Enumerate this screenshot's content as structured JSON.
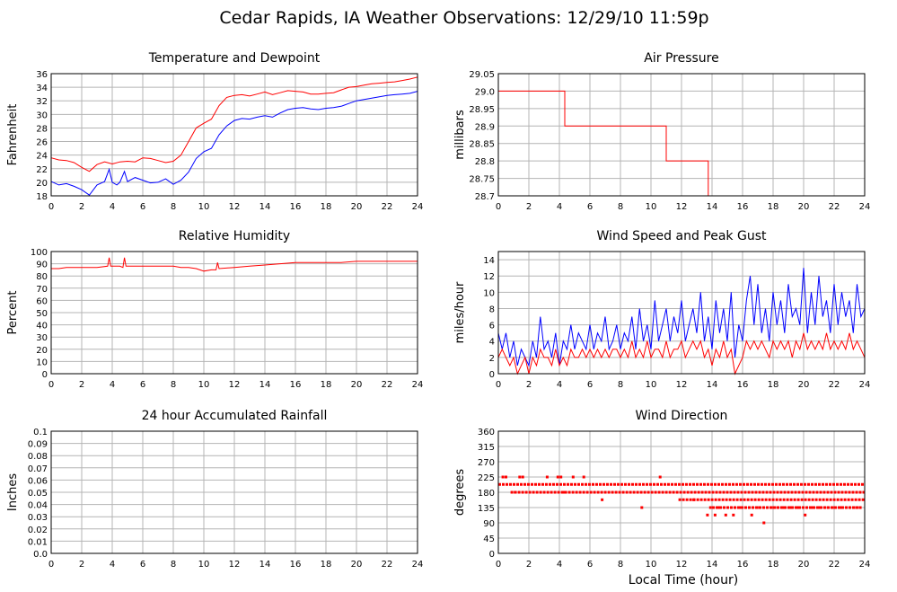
{
  "title": "Cedar Rapids, IA Weather Observations: 12/29/10 11:59p",
  "xlabel_bottom": "Local Time (hour)",
  "colors": {
    "red": "#ff0000",
    "blue": "#0000ff",
    "grid": "#b4b4b4"
  },
  "chart_data": [
    {
      "id": "temp",
      "type": "line",
      "title": "Temperature and Dewpoint",
      "ylabel": "Fahrenheit",
      "xlim": [
        0,
        24
      ],
      "ylim": [
        18,
        36
      ],
      "xticks": [
        0,
        2,
        4,
        6,
        8,
        10,
        12,
        14,
        16,
        18,
        20,
        22,
        24
      ],
      "yticks": [
        18,
        20,
        22,
        24,
        26,
        28,
        30,
        32,
        34,
        36
      ],
      "ytick_labels": [
        "18",
        "20",
        "22",
        "24",
        "26",
        "28",
        "30",
        "32",
        "34",
        "36"
      ],
      "series": [
        {
          "color": "#ff0000",
          "x": [
            0,
            0.5,
            1,
            1.5,
            2,
            2.5,
            3,
            3.5,
            4,
            4.5,
            5,
            5.5,
            6,
            6.5,
            7,
            7.5,
            8,
            8.5,
            9,
            9.5,
            10,
            10.5,
            11,
            11.5,
            12,
            12.5,
            13,
            13.5,
            14,
            14.5,
            15,
            15.5,
            16,
            16.5,
            17,
            17.5,
            18,
            18.5,
            19,
            19.5,
            20,
            20.5,
            21,
            21.5,
            22,
            22.5,
            23,
            23.5,
            24
          ],
          "values": [
            23.6,
            23.3,
            23.2,
            22.9,
            22.2,
            21.6,
            22.6,
            23.0,
            22.7,
            23.0,
            23.1,
            23.0,
            23.6,
            23.5,
            23.2,
            22.9,
            23.1,
            24.0,
            26.0,
            28.0,
            28.7,
            29.3,
            31.3,
            32.5,
            32.8,
            32.9,
            32.7,
            33.0,
            33.3,
            32.9,
            33.2,
            33.5,
            33.4,
            33.3,
            33.0,
            33.0,
            33.1,
            33.2,
            33.6,
            34.0,
            34.1,
            34.3,
            34.5,
            34.6,
            34.7,
            34.8,
            35.0,
            35.2,
            35.5
          ]
        },
        {
          "color": "#0000ff",
          "x": [
            0,
            0.5,
            1,
            1.5,
            2,
            2.5,
            3,
            3.5,
            3.8,
            4,
            4.3,
            4.5,
            4.8,
            5,
            5.5,
            6,
            6.5,
            7,
            7.5,
            8,
            8.5,
            9,
            9.5,
            10,
            10.5,
            11,
            11.5,
            12,
            12.5,
            13,
            13.5,
            14,
            14.5,
            15,
            15.5,
            16,
            16.5,
            17,
            17.5,
            18,
            18.5,
            19,
            19.5,
            20,
            20.5,
            21,
            21.5,
            22,
            22.5,
            23,
            23.5,
            24
          ],
          "values": [
            20.1,
            19.6,
            19.8,
            19.4,
            18.9,
            18.1,
            19.6,
            20.1,
            21.9,
            20.0,
            19.6,
            20.0,
            21.6,
            20.1,
            20.7,
            20.3,
            19.9,
            20.0,
            20.5,
            19.7,
            20.3,
            21.5,
            23.5,
            24.5,
            25.0,
            27.0,
            28.3,
            29.1,
            29.4,
            29.3,
            29.6,
            29.8,
            29.6,
            30.2,
            30.7,
            30.9,
            31.0,
            30.8,
            30.7,
            30.9,
            31.0,
            31.2,
            31.6,
            32.0,
            32.2,
            32.4,
            32.6,
            32.8,
            32.9,
            33.0,
            33.1,
            33.4
          ]
        }
      ]
    },
    {
      "id": "pressure",
      "type": "line",
      "title": "Air Pressure",
      "ylabel": "millibars",
      "xlim": [
        0,
        24
      ],
      "ylim": [
        28.7,
        29.05
      ],
      "xticks": [
        0,
        2,
        4,
        6,
        8,
        10,
        12,
        14,
        16,
        18,
        20,
        22,
        24
      ],
      "yticks": [
        28.7,
        28.75,
        28.8,
        28.85,
        28.9,
        28.95,
        29.0,
        29.05
      ],
      "ytick_labels": [
        "28.7",
        "28.75",
        "28.8",
        "28.85",
        "28.9",
        "28.95",
        "29.0",
        "29.05"
      ],
      "series": [
        {
          "color": "#ff0000",
          "x": [
            0,
            4.35,
            4.35,
            11.0,
            11.0,
            13.75,
            13.75
          ],
          "values": [
            29.0,
            29.0,
            28.9,
            28.9,
            28.8,
            28.8,
            28.7
          ]
        }
      ]
    },
    {
      "id": "humidity",
      "type": "line",
      "title": "Relative Humidity",
      "ylabel": "Percent",
      "xlim": [
        0,
        24
      ],
      "ylim": [
        0,
        100
      ],
      "xticks": [
        0,
        2,
        4,
        6,
        8,
        10,
        12,
        14,
        16,
        18,
        20,
        22,
        24
      ],
      "yticks": [
        0,
        10,
        20,
        30,
        40,
        50,
        60,
        70,
        80,
        90,
        100
      ],
      "ytick_labels": [
        "0",
        "10",
        "20",
        "30",
        "40",
        "50",
        "60",
        "70",
        "80",
        "90",
        "100"
      ],
      "series": [
        {
          "color": "#ff0000",
          "x": [
            0,
            0.5,
            1,
            2,
            3,
            3.7,
            3.8,
            3.9,
            4.5,
            4.7,
            4.8,
            4.9,
            5.5,
            6,
            7,
            8,
            8.5,
            9,
            9.5,
            10,
            10.5,
            10.8,
            10.9,
            11,
            12,
            13,
            14,
            15,
            16,
            17,
            18,
            19,
            20,
            21,
            22,
            23,
            24
          ],
          "values": [
            86,
            86,
            87,
            87,
            87,
            88,
            95,
            88,
            88,
            87,
            95,
            88,
            88,
            88,
            88,
            88,
            87,
            87,
            86,
            84,
            85,
            85,
            91,
            86,
            87,
            88,
            89,
            90,
            91,
            91,
            91,
            91,
            92,
            92,
            92,
            92,
            92
          ]
        }
      ]
    },
    {
      "id": "wind",
      "type": "line",
      "title": "Wind Speed and Peak Gust",
      "ylabel": "miles/hour",
      "xlim": [
        0,
        24
      ],
      "ylim": [
        0,
        15
      ],
      "xticks": [
        0,
        2,
        4,
        6,
        8,
        10,
        12,
        14,
        16,
        18,
        20,
        22,
        24
      ],
      "yticks": [
        0,
        2,
        4,
        6,
        8,
        10,
        12,
        14
      ],
      "ytick_labels": [
        "0",
        "2",
        "4",
        "6",
        "8",
        "10",
        "12",
        "14"
      ],
      "series": [
        {
          "color": "#0000ff",
          "x": [
            0,
            0.25,
            0.5,
            0.75,
            1,
            1.25,
            1.5,
            1.75,
            2,
            2.25,
            2.5,
            2.75,
            3,
            3.25,
            3.5,
            3.75,
            4,
            4.25,
            4.5,
            4.75,
            5,
            5.25,
            5.5,
            5.75,
            6,
            6.25,
            6.5,
            6.75,
            7,
            7.25,
            7.5,
            7.75,
            8,
            8.25,
            8.5,
            8.75,
            9,
            9.25,
            9.5,
            9.75,
            10,
            10.25,
            10.5,
            10.75,
            11,
            11.25,
            11.5,
            11.75,
            12,
            12.25,
            12.5,
            12.75,
            13,
            13.25,
            13.5,
            13.75,
            14,
            14.25,
            14.5,
            14.75,
            15,
            15.25,
            15.5,
            15.75,
            16,
            16.25,
            16.5,
            16.75,
            17,
            17.25,
            17.5,
            17.75,
            18,
            18.25,
            18.5,
            18.75,
            19,
            19.25,
            19.5,
            19.75,
            20,
            20.25,
            20.5,
            20.75,
            21,
            21.25,
            21.5,
            21.75,
            22,
            22.25,
            22.5,
            22.75,
            23,
            23.25,
            23.5,
            23.75,
            24
          ],
          "values": [
            5,
            3,
            5,
            2,
            4,
            1,
            3,
            2,
            1,
            4,
            2,
            7,
            3,
            4,
            2,
            5,
            1,
            4,
            3,
            6,
            3,
            5,
            4,
            3,
            6,
            3,
            5,
            4,
            7,
            3,
            4,
            6,
            3,
            5,
            4,
            7,
            3,
            8,
            4,
            6,
            3,
            9,
            4,
            6,
            8,
            4,
            7,
            5,
            9,
            4,
            6,
            8,
            5,
            10,
            4,
            7,
            3,
            9,
            5,
            8,
            4,
            10,
            2,
            6,
            4,
            9,
            12,
            6,
            11,
            5,
            8,
            4,
            10,
            6,
            9,
            5,
            11,
            7,
            8,
            6,
            13,
            5,
            10,
            6,
            12,
            7,
            9,
            5,
            11,
            6,
            10,
            7,
            9,
            5,
            11,
            7,
            8
          ]
        },
        {
          "color": "#ff0000",
          "x": [
            0,
            0.25,
            0.5,
            0.75,
            1,
            1.25,
            1.5,
            1.75,
            2,
            2.25,
            2.5,
            2.75,
            3,
            3.25,
            3.5,
            3.75,
            4,
            4.25,
            4.5,
            4.75,
            5,
            5.25,
            5.5,
            5.75,
            6,
            6.25,
            6.5,
            6.75,
            7,
            7.25,
            7.5,
            7.75,
            8,
            8.25,
            8.5,
            8.75,
            9,
            9.25,
            9.5,
            9.75,
            10,
            10.25,
            10.5,
            10.75,
            11,
            11.25,
            11.5,
            11.75,
            12,
            12.25,
            12.5,
            12.75,
            13,
            13.25,
            13.5,
            13.75,
            14,
            14.25,
            14.5,
            14.75,
            15,
            15.25,
            15.5,
            15.75,
            16,
            16.25,
            16.5,
            16.75,
            17,
            17.25,
            17.5,
            17.75,
            18,
            18.25,
            18.5,
            18.75,
            19,
            19.25,
            19.5,
            19.75,
            20,
            20.25,
            20.5,
            20.75,
            21,
            21.25,
            21.5,
            21.75,
            22,
            22.25,
            22.5,
            22.75,
            23,
            23.25,
            23.5,
            23.75,
            24
          ],
          "values": [
            2,
            3,
            2,
            1,
            2,
            0,
            1,
            2,
            0,
            2,
            1,
            3,
            2,
            2,
            1,
            3,
            1,
            2,
            1,
            3,
            2,
            2,
            3,
            2,
            3,
            2,
            3,
            2,
            3,
            2,
            3,
            3,
            2,
            3,
            2,
            4,
            2,
            3,
            2,
            4,
            2,
            3,
            3,
            2,
            4,
            2,
            3,
            3,
            4,
            2,
            3,
            4,
            3,
            4,
            2,
            3,
            1,
            3,
            2,
            4,
            2,
            3,
            0,
            1,
            2,
            4,
            3,
            4,
            3,
            4,
            3,
            2,
            4,
            3,
            4,
            3,
            4,
            2,
            4,
            3,
            5,
            3,
            4,
            3,
            4,
            3,
            5,
            3,
            4,
            3,
            4,
            3,
            5,
            3,
            4,
            3,
            2
          ]
        }
      ]
    },
    {
      "id": "rain",
      "type": "line",
      "title": "24 hour Accumulated Rainfall",
      "ylabel": "Inches",
      "xlim": [
        0,
        24
      ],
      "ylim": [
        0,
        0.1
      ],
      "xticks": [
        0,
        2,
        4,
        6,
        8,
        10,
        12,
        14,
        16,
        18,
        20,
        22,
        24
      ],
      "yticks": [
        0,
        0.01,
        0.02,
        0.03,
        0.04,
        0.05,
        0.06,
        0.07,
        0.08,
        0.09,
        0.1
      ],
      "ytick_labels": [
        "0.0",
        "0.01",
        "0.02",
        "0.03",
        "0.04",
        "0.05",
        "0.06",
        "0.07",
        "0.08",
        "0.09",
        "0.1"
      ],
      "series": [
        {
          "color": "#ff0000",
          "x": [
            0,
            24
          ],
          "values": [
            0,
            0
          ]
        }
      ]
    },
    {
      "id": "direction",
      "type": "scatter",
      "title": "Wind Direction",
      "ylabel": "degrees",
      "xlabel": "Local Time (hour)",
      "xlim": [
        0,
        24
      ],
      "ylim": [
        0,
        360
      ],
      "xticks": [
        0,
        2,
        4,
        6,
        8,
        10,
        12,
        14,
        16,
        18,
        20,
        22,
        24
      ],
      "yticks": [
        0,
        45,
        90,
        135,
        180,
        225,
        270,
        315,
        360
      ],
      "ytick_labels": [
        "0",
        "45",
        "90",
        "135",
        "180",
        "225",
        "270",
        "315",
        "360"
      ],
      "series": [
        {
          "color": "#ff0000",
          "x": [
            0.3,
            0.5,
            1.1,
            1.4,
            1.6,
            3.2,
            3.9,
            4.1,
            4.3,
            4.9,
            5.6,
            6.8,
            9.4,
            10.6,
            12.8,
            13.7,
            13.9,
            14.2,
            14.5,
            14.9,
            15.4,
            15.8,
            16.2,
            16.6,
            17.1,
            17.4,
            17.9,
            18.3,
            18.7,
            19.2,
            19.6,
            20.1,
            20.5,
            21.0,
            21.4,
            21.9,
            22.4,
            22.8,
            23.3,
            23.7
          ],
          "values": [
            225,
            225,
            180,
            225,
            225,
            225,
            225,
            225,
            180,
            225,
            225,
            158,
            135,
            225,
            158,
            113,
            135,
            113,
            135,
            113,
            113,
            135,
            135,
            113,
            135,
            90,
            135,
            135,
            135,
            135,
            135,
            113,
            135,
            135,
            135,
            135,
            135,
            135,
            135,
            135
          ]
        },
        {
          "color": "#ff0000",
          "band": true,
          "segments": [
            [
              0,
              24,
              203
            ],
            [
              0.8,
              13.5,
              180
            ],
            [
              11.8,
              24,
              158
            ],
            [
              14,
              23.8,
              135
            ],
            [
              13.5,
              24,
              180
            ]
          ]
        }
      ]
    }
  ]
}
